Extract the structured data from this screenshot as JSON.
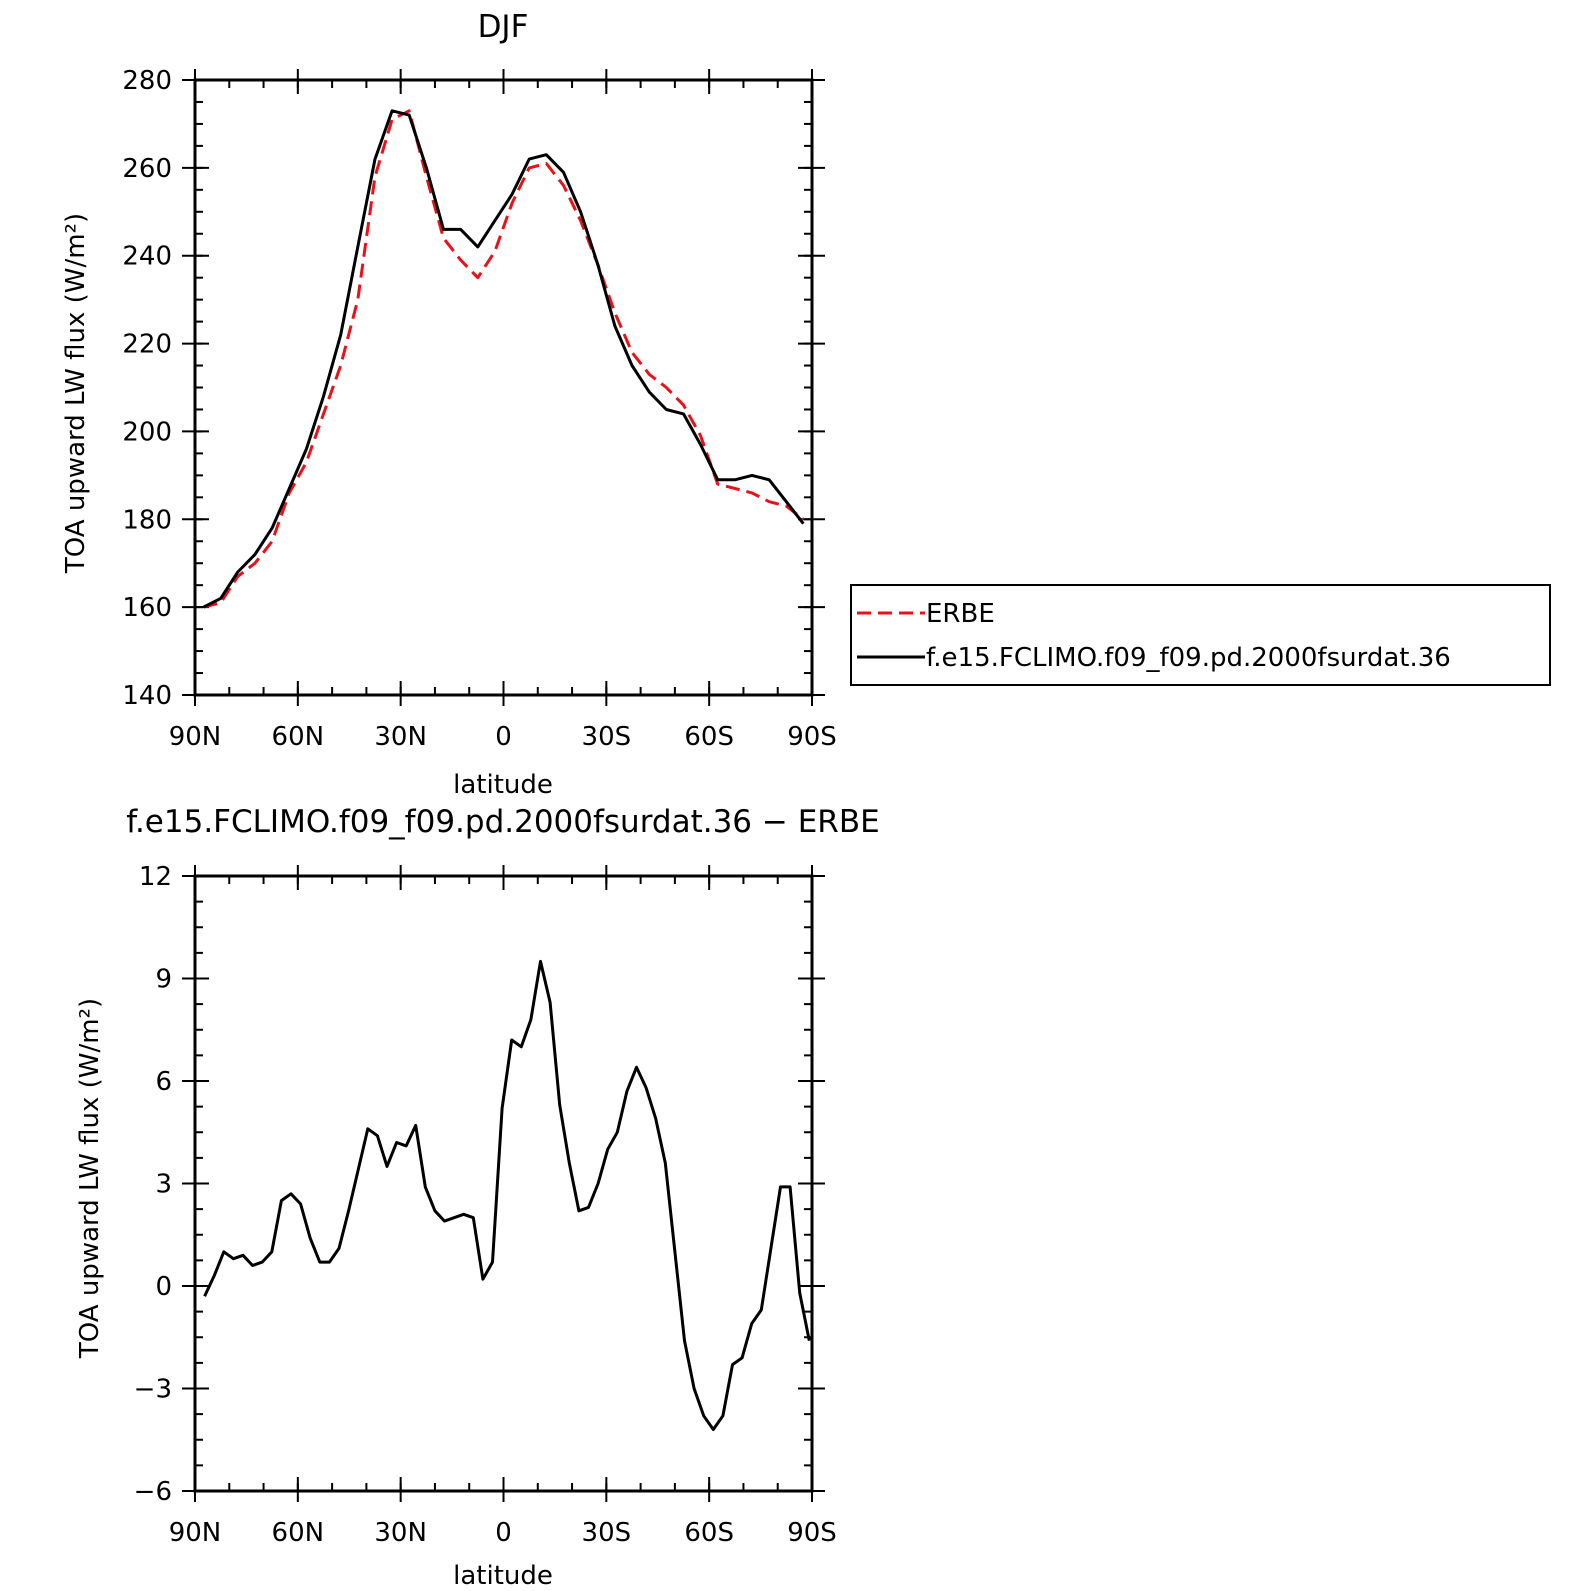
{
  "chart_data": [
    {
      "type": "line",
      "title": "DJF",
      "xlabel": "latitude",
      "ylabel": "TOA upward LW flux (W/m²)",
      "xlim": [
        90,
        -90
      ],
      "ylim": [
        140,
        280
      ],
      "xticks": [
        90,
        60,
        30,
        0,
        -30,
        -60,
        -90
      ],
      "xtick_labels": [
        "90N",
        "60N",
        "30N",
        "0",
        "30S",
        "60S",
        "90S"
      ],
      "yticks": [
        140,
        160,
        180,
        200,
        220,
        240,
        260,
        280
      ],
      "ytick_labels": [
        "140",
        "160",
        "180",
        "200",
        "220",
        "240",
        "260",
        "280"
      ],
      "grid": false,
      "legend_position": "right",
      "series": [
        {
          "name": "ERBE",
          "color": "#e8121a",
          "dash": "dashed",
          "x": [
            87.5,
            82.5,
            77.5,
            72.5,
            67.5,
            62.5,
            57.5,
            52.5,
            47.5,
            42.5,
            37.5,
            32.5,
            27.5,
            22.5,
            17.5,
            12.5,
            7.5,
            2.5,
            -2.5,
            -7.5,
            -12.5,
            -17.5,
            -22.5,
            -27.5,
            -32.5,
            -37.5,
            -42.5,
            -47.5,
            -52.5,
            -57.5,
            -62.5,
            -67.5,
            -72.5,
            -77.5,
            -82.5,
            -87.5
          ],
          "y": [
            160,
            161,
            167,
            170,
            175,
            186,
            193,
            204,
            215,
            230,
            258,
            271,
            273,
            258,
            244,
            239,
            235,
            241,
            252,
            260,
            261,
            256,
            248,
            238,
            227,
            218,
            213,
            210,
            206,
            199,
            188,
            187,
            186,
            184,
            183,
            180
          ]
        },
        {
          "name": "f.e15.FCLIMO.f09_f09.pd.2000fsurdat.36",
          "color": "#000000",
          "dash": "solid",
          "x": [
            87.5,
            82.5,
            77.5,
            72.5,
            67.5,
            62.5,
            57.5,
            52.5,
            47.5,
            42.5,
            37.5,
            32.5,
            27.5,
            22.5,
            17.5,
            12.5,
            7.5,
            2.5,
            -2.5,
            -7.5,
            -12.5,
            -17.5,
            -22.5,
            -27.5,
            -32.5,
            -37.5,
            -42.5,
            -47.5,
            -52.5,
            -57.5,
            -62.5,
            -67.5,
            -72.5,
            -77.5,
            -82.5,
            -87.5
          ],
          "y": [
            160,
            162,
            168,
            172,
            178,
            187,
            196,
            208,
            222,
            242,
            262,
            273,
            272,
            260,
            246,
            246,
            242,
            248,
            254,
            262,
            263,
            259,
            250,
            238,
            224,
            215,
            209,
            205,
            204,
            197,
            189,
            189,
            190,
            189,
            184,
            179
          ]
        }
      ]
    },
    {
      "type": "line",
      "title": "f.e15.FCLIMO.f09_f09.pd.2000fsurdat.36 − ERBE",
      "xlabel": "latitude",
      "ylabel": "TOA upward LW flux (W/m²)",
      "xlim": [
        90,
        -90
      ],
      "ylim": [
        -6,
        12
      ],
      "xticks": [
        90,
        60,
        30,
        0,
        -30,
        -60,
        -90
      ],
      "xtick_labels": [
        "90N",
        "60N",
        "30N",
        "0",
        "30S",
        "60S",
        "90S"
      ],
      "yticks": [
        -6,
        -3,
        0,
        3,
        6,
        9,
        12
      ],
      "ytick_labels": [
        "−6",
        "−3",
        "0",
        "3",
        "6",
        "9",
        "12"
      ],
      "grid": false,
      "series": [
        {
          "color": "#000000",
          "dash": "solid",
          "x": [
            87.2,
            84.4,
            81.6,
            78.8,
            76.0,
            73.2,
            70.4,
            67.6,
            64.8,
            62.0,
            59.2,
            56.4,
            53.6,
            50.8,
            48.0,
            45.2,
            42.4,
            39.6,
            36.8,
            34.0,
            31.2,
            28.4,
            25.6,
            22.8,
            20.0,
            17.2,
            14.4,
            11.6,
            8.8,
            6.0,
            3.2,
            0.4,
            -2.4,
            -5.2,
            -8.0,
            -10.8,
            -13.6,
            -16.4,
            -19.2,
            -22.0,
            -24.8,
            -27.6,
            -30.4,
            -33.2,
            -36.0,
            -38.8,
            -41.6,
            -44.4,
            -47.2,
            -50.0,
            -52.8,
            -55.6,
            -58.4,
            -61.2,
            -64.0,
            -66.8,
            -69.6,
            -72.4,
            -75.2,
            -78.0,
            -80.8,
            -83.6,
            -86.4,
            -89.2
          ],
          "y": [
            -0.3,
            0.3,
            1.0,
            0.8,
            0.9,
            0.6,
            0.7,
            1.0,
            2.5,
            2.7,
            2.4,
            1.4,
            0.7,
            0.7,
            1.1,
            2.2,
            3.4,
            4.6,
            4.4,
            3.5,
            4.2,
            4.1,
            4.7,
            2.9,
            2.2,
            1.9,
            2.0,
            2.1,
            2.0,
            0.2,
            0.7,
            5.2,
            7.2,
            7.0,
            7.8,
            9.5,
            8.3,
            5.3,
            3.6,
            2.2,
            2.3,
            3.0,
            4.0,
            4.5,
            5.7,
            6.4,
            5.8,
            4.9,
            3.6,
            1.0,
            -1.6,
            -3.0,
            -3.8,
            -4.2,
            -3.8,
            -2.3,
            -2.1,
            -1.1,
            -0.7,
            1.1,
            2.9,
            2.9,
            -0.2,
            -1.6
          ]
        }
      ]
    }
  ]
}
